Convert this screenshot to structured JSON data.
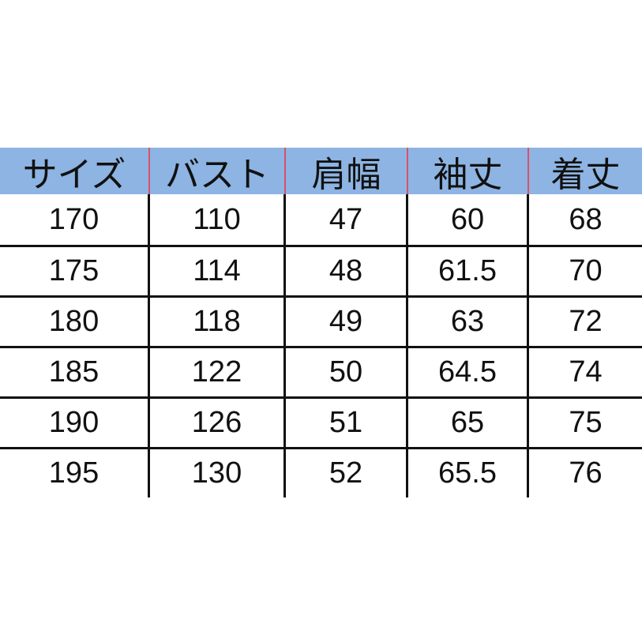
{
  "table": {
    "header_color": "#8db4e2",
    "headers": [
      "サイズ",
      "バスト",
      "肩幅",
      "袖丈",
      "着丈"
    ],
    "rows": [
      [
        "170",
        "110",
        "47",
        "60",
        "68"
      ],
      [
        "175",
        "114",
        "48",
        "61.5",
        "70"
      ],
      [
        "180",
        "118",
        "49",
        "63",
        "72"
      ],
      [
        "185",
        "122",
        "50",
        "64.5",
        "74"
      ],
      [
        "190",
        "126",
        "51",
        "65",
        "75"
      ],
      [
        "195",
        "130",
        "52",
        "65.5",
        "76"
      ]
    ]
  }
}
